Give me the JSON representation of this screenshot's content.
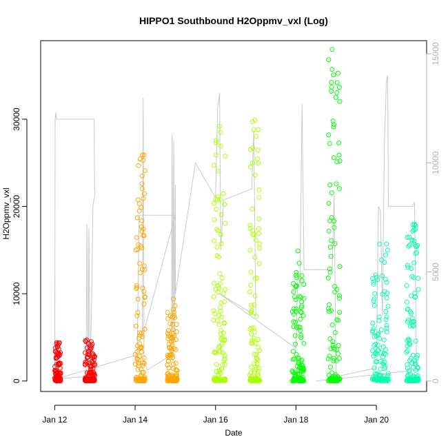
{
  "chart_data": {
    "type": "scatter",
    "title": "HIPPO1 Southbound H2Oppmv_vxl (Log)",
    "xlabel": "Date",
    "ylabel": "H2Oppmv_vxl",
    "x_ticks": [
      "Jan 12",
      "Jan 14",
      "Jan 16",
      "Jan 18",
      "Jan 20"
    ],
    "x_tick_values": [
      12,
      14,
      16,
      18,
      20
    ],
    "xlim": [
      11.65,
      21.25
    ],
    "y_ticks": [
      0,
      10000,
      20000,
      30000
    ],
    "ylim": [
      -1200,
      39000
    ],
    "y2_ticks": [
      0,
      5000,
      10000,
      15000
    ],
    "y2lim": [
      -480,
      15600
    ],
    "grid": false,
    "colors": {
      "flight_1": "#ff0000",
      "flight_2": "#ffa500",
      "flight_3": "#aaff00",
      "flight_4": "#00ff00",
      "flight_5": "#00ffaa",
      "altitude_line": "#c8c8c8"
    },
    "series": [
      {
        "color": "flight_1",
        "segments": [
          {
            "x0": 12.0,
            "x1": 12.15,
            "ymax": 4400,
            "peaks": [
              [
                12.05,
                4400
              ]
            ]
          },
          {
            "x0": 12.75,
            "x1": 13.0,
            "ymax": 4700,
            "peaks": [
              [
                12.8,
                4700
              ],
              [
                12.85,
                3000
              ]
            ]
          }
        ]
      },
      {
        "color": "flight_2",
        "segments": [
          {
            "x0": 14.0,
            "x1": 14.25,
            "ymax": 26000,
            "peaks": [
              [
                14.18,
                25900
              ],
              [
                14.2,
                25300
              ],
              [
                14.17,
                22600
              ],
              [
                14.2,
                20900
              ]
            ]
          },
          {
            "x0": 14.8,
            "x1": 15.05,
            "ymax": 9500,
            "peaks": [
              [
                14.95,
                9400
              ]
            ]
          }
        ]
      },
      {
        "color": "flight_3",
        "segments": [
          {
            "x0": 15.95,
            "x1": 16.25,
            "ymax": 29300,
            "peaks": [
              [
                16.1,
                29200
              ],
              [
                16.12,
                28500
              ]
            ]
          },
          {
            "x0": 16.85,
            "x1": 17.1,
            "ymax": 30000,
            "peaks": [
              [
                16.98,
                29900
              ],
              [
                16.95,
                28800
              ]
            ]
          }
        ]
      },
      {
        "color": "flight_4",
        "segments": [
          {
            "x0": 17.9,
            "x1": 18.2,
            "ymax": 15000,
            "peaks": [
              [
                18.05,
                14900
              ],
              [
                18.08,
                13500
              ]
            ]
          },
          {
            "x0": 18.8,
            "x1": 19.1,
            "ymax": 38000,
            "peaks": [
              [
                18.9,
                38000
              ],
              [
                18.9,
                35700
              ],
              [
                18.88,
                33200
              ],
              [
                18.92,
                29800
              ]
            ]
          }
        ]
      },
      {
        "color": "flight_5",
        "segments": [
          {
            "x0": 19.9,
            "x1": 20.3,
            "ymax": 15800,
            "peaks": [
              [
                20.25,
                15700
              ],
              [
                20.28,
                15000
              ],
              [
                20.2,
                13600
              ]
            ]
          },
          {
            "x0": 20.75,
            "x1": 21.05,
            "ymax": 18000,
            "peaks": [
              [
                20.95,
                17900
              ],
              [
                20.93,
                17300
              ],
              [
                20.96,
                15600
              ]
            ]
          }
        ]
      }
    ],
    "altitude_line": {
      "axis": "right",
      "points": [
        [
          12.0,
          0
        ],
        [
          12.01,
          12000
        ],
        [
          12.02,
          12200
        ],
        [
          12.03,
          12300
        ],
        [
          12.04,
          12000
        ],
        [
          12.5,
          12000
        ],
        [
          12.98,
          12000
        ],
        [
          12.99,
          8800
        ],
        [
          13.0,
          8600
        ],
        [
          12.95,
          8000
        ],
        [
          12.92,
          4000
        ],
        [
          12.88,
          200
        ],
        [
          12.85,
          7000
        ],
        [
          12.83,
          300
        ],
        [
          12.8,
          7200
        ],
        [
          12.78,
          200
        ],
        [
          12.05,
          100
        ],
        [
          14.05,
          1200
        ],
        [
          14.1,
          7600
        ],
        [
          15.0,
          7600
        ],
        [
          14.18,
          2000
        ],
        [
          14.2,
          13000
        ],
        [
          14.22,
          1000
        ],
        [
          14.3,
          500
        ],
        [
          14.9,
          1200
        ],
        [
          14.92,
          11300
        ],
        [
          14.94,
          900
        ],
        [
          14.96,
          11000
        ],
        [
          14.98,
          2000
        ],
        [
          15.0,
          9000
        ],
        [
          15.0,
          4000
        ],
        [
          15.5,
          10000
        ],
        [
          16.0,
          8400
        ],
        [
          16.05,
          12500
        ],
        [
          16.1,
          13200
        ],
        [
          16.13,
          6000
        ],
        [
          16.2,
          8300
        ],
        [
          16.9,
          8800
        ],
        [
          16.95,
          11500
        ],
        [
          17.0,
          3000
        ],
        [
          16.1,
          4000
        ],
        [
          18.0,
          1500
        ],
        [
          18.05,
          5000
        ],
        [
          18.1,
          4400
        ],
        [
          18.15,
          12700
        ],
        [
          18.2,
          5100
        ],
        [
          18.9,
          5100
        ],
        [
          18.95,
          8500
        ],
        [
          18.98,
          3000
        ],
        [
          19.0,
          200
        ],
        [
          20.0,
          600
        ],
        [
          20.05,
          8000
        ],
        [
          20.1,
          7800
        ],
        [
          20.15,
          3000
        ],
        [
          20.2,
          11000
        ],
        [
          20.25,
          13800
        ],
        [
          20.28,
          14000
        ],
        [
          20.3,
          8000
        ],
        [
          20.9,
          8000
        ],
        [
          20.95,
          8200
        ],
        [
          21.0,
          500
        ],
        [
          18.5,
          0
        ]
      ]
    }
  }
}
